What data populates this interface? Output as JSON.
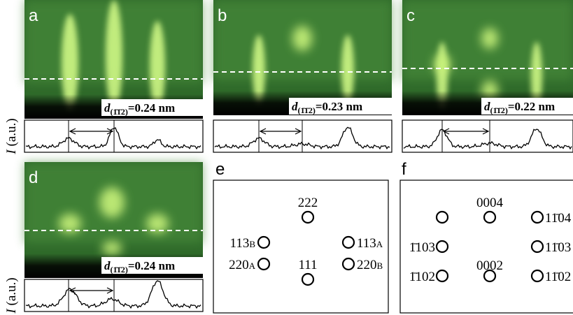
{
  "panels": [
    {
      "letter": "a",
      "d_label": {
        "symbol": "d",
        "plane": "(1̄1̄2)",
        "value_text": "=0.24 nm"
      }
    },
    {
      "letter": "b",
      "d_label": {
        "symbol": "d",
        "plane": "(1̄1̄2)",
        "value_text": "=0.23 nm"
      }
    },
    {
      "letter": "c",
      "d_label": {
        "symbol": "d",
        "plane": "(1̄1̄2)",
        "value_text": "=0.22 nm"
      }
    },
    {
      "letter": "d",
      "d_label": {
        "symbol": "d",
        "plane": "(1̄1̄2)",
        "value_text": "=0.24 nm"
      }
    },
    {
      "letter": "e"
    },
    {
      "letter": "f"
    }
  ],
  "intensity_axis": {
    "symbol": "I",
    "unit": "(a.u.)"
  },
  "pattern_e": {
    "spots": [
      {
        "index": "222"
      },
      {
        "index": "113",
        "sub": "B"
      },
      {
        "index": "113",
        "sub": "A"
      },
      {
        "index": "220",
        "sub": "A"
      },
      {
        "index": "111"
      },
      {
        "index": "220",
        "sub": "B"
      }
    ]
  },
  "pattern_f": {
    "spots": [
      "0004",
      "1̄103",
      "1̄102",
      "0002",
      "11̄04",
      "11̄03",
      "11̄02"
    ]
  }
}
